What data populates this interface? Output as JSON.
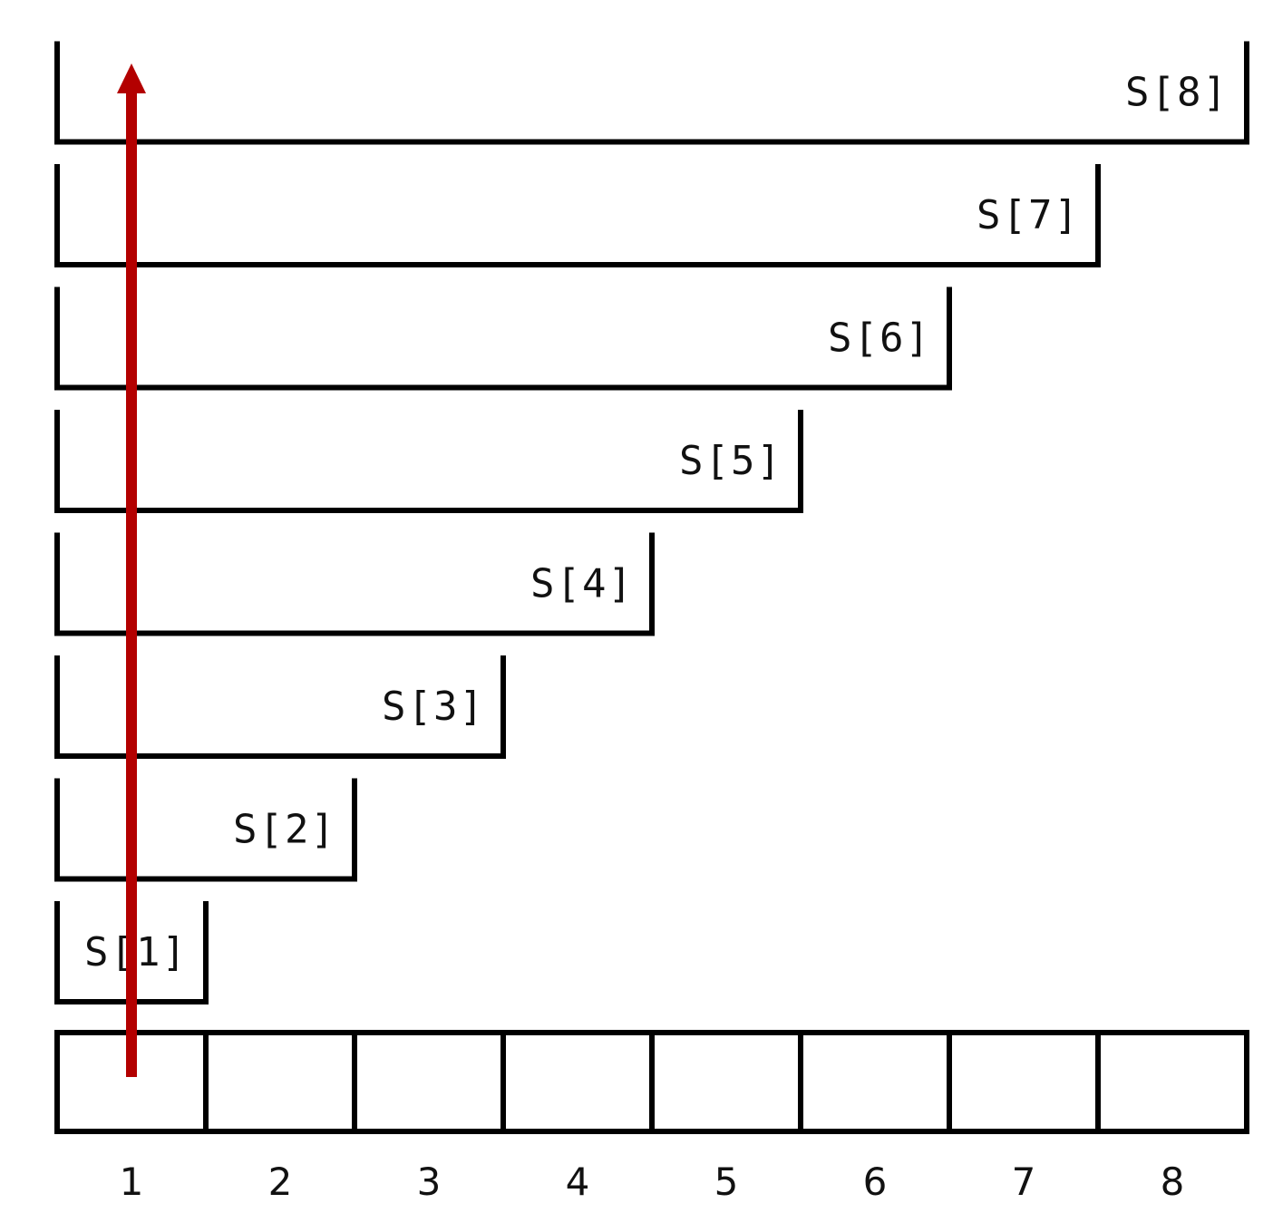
{
  "diagram": {
    "prefix_labels": [
      "S[1]",
      "S[2]",
      "S[3]",
      "S[4]",
      "S[5]",
      "S[6]",
      "S[7]",
      "S[8]"
    ],
    "indices": [
      "1",
      "2",
      "3",
      "4",
      "5",
      "6",
      "7",
      "8"
    ],
    "arrow_color": "#b30000",
    "line_color": "#000000",
    "arrow_at_index": "1",
    "arrow_direction": "up"
  }
}
